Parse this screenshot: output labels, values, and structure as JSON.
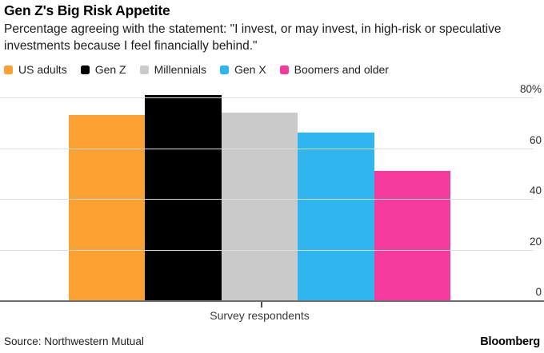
{
  "chart_data": {
    "type": "bar",
    "title": "Gen Z's Big Risk Appetite",
    "subtitle": "Percentage agreeing with the statement: \"I invest, or may invest, in high-risk or speculative investments because I feel financially behind.\"",
    "categories": [
      "Survey respondents"
    ],
    "series": [
      {
        "name": "US adults",
        "value": 73,
        "color": "#FCA032"
      },
      {
        "name": "Gen Z",
        "value": 81,
        "color": "#000000"
      },
      {
        "name": "Millennials",
        "value": 74,
        "color": "#CACACA"
      },
      {
        "name": "Gen X",
        "value": 66,
        "color": "#2FB5F0"
      },
      {
        "name": "Boomers and older",
        "value": 51,
        "color": "#F43A9C"
      }
    ],
    "xlabel": "Survey respondents",
    "ylabel": "",
    "ylim": [
      0,
      80
    ],
    "yticks": [
      {
        "value": 80,
        "label": "80%"
      },
      {
        "value": 60,
        "label": "60"
      },
      {
        "value": 40,
        "label": "40"
      },
      {
        "value": 20,
        "label": "20"
      },
      {
        "value": 0,
        "label": "0"
      }
    ],
    "grid": "horizontal",
    "legend_position": "top"
  },
  "footer": {
    "source": "Source: Northwestern Mutual",
    "brand": "Bloomberg"
  }
}
